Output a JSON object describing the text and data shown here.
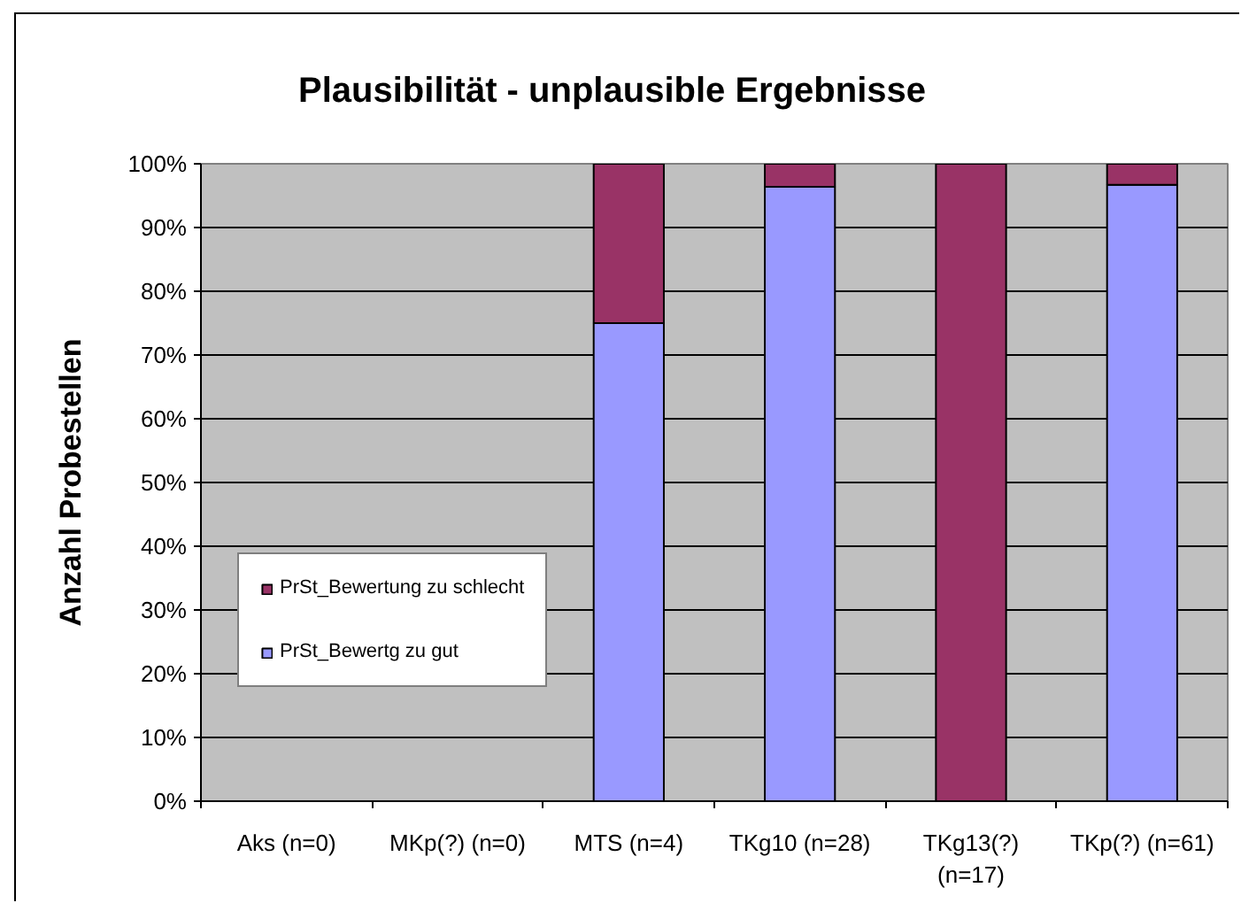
{
  "chart_data": {
    "type": "bar",
    "title": "Plausibilität - unplausible Ergebnisse",
    "ylabel": "Anzahl Probestellen",
    "categories": [
      "Aks (n=0)",
      "MKp(?) (n=0)",
      "MTS (n=4)",
      "TKg10 (n=28)",
      "TKg13(?) (n=17)",
      "TKp(?) (n=61)"
    ],
    "stacked": true,
    "series": [
      {
        "name": "PrSt_Bewertg zu gut",
        "color": "#9999ff",
        "values": [
          null,
          null,
          75,
          96.4,
          null,
          96.7
        ]
      },
      {
        "name": "PrSt_Bewertung zu schlecht",
        "color": "#993366",
        "values": [
          null,
          null,
          25,
          3.6,
          100,
          3.3
        ]
      }
    ],
    "ylim": [
      0,
      100
    ],
    "yticks": [
      {
        "value": 0,
        "label": "0%"
      },
      {
        "value": 10,
        "label": "10%"
      },
      {
        "value": 20,
        "label": "20%"
      },
      {
        "value": 30,
        "label": "30%"
      },
      {
        "value": 40,
        "label": "40%"
      },
      {
        "value": 50,
        "label": "50%"
      },
      {
        "value": 60,
        "label": "60%"
      },
      {
        "value": 70,
        "label": "70%"
      },
      {
        "value": 80,
        "label": "80%"
      },
      {
        "value": 90,
        "label": "90%"
      },
      {
        "value": 100,
        "label": "100%"
      }
    ],
    "grid": "y",
    "legend": "bottom left"
  }
}
